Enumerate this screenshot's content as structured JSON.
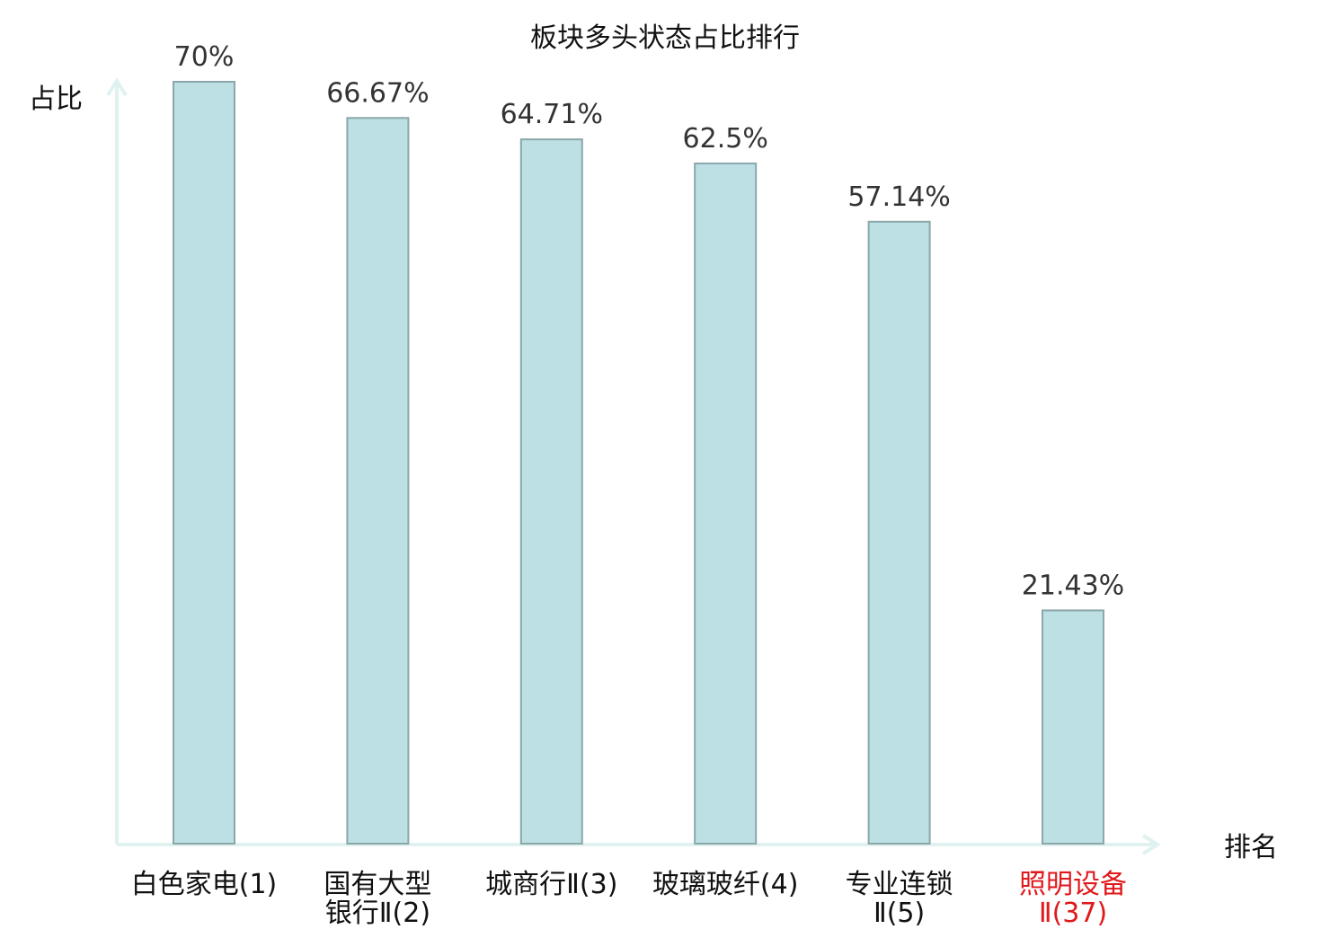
{
  "chart_data": {
    "type": "bar",
    "title": "板块多头状态占比排行",
    "ylabel": "占比",
    "xlabel": "排名",
    "ylim": [
      0,
      70
    ],
    "grid": false,
    "legend": "none",
    "categories": [
      [
        "白色家电(1)"
      ],
      [
        "国有大型",
        "银行Ⅱ(2)"
      ],
      [
        "城商行Ⅱ(3)"
      ],
      [
        "玻璃玻纤(4)"
      ],
      [
        "专业连锁",
        "Ⅱ(5)"
      ],
      [
        "照明设备",
        "Ⅱ(37)"
      ]
    ],
    "values": [
      70,
      66.67,
      64.71,
      62.5,
      57.14,
      21.43
    ],
    "value_labels": [
      "70%",
      "66.67%",
      "64.71%",
      "62.5%",
      "57.14%",
      "21.43%"
    ],
    "highlight_index": 5,
    "colors": {
      "bar_fill": "#bce0e3",
      "bar_stroke": "#8ba7aa",
      "axis": "#e0f2f0",
      "text": "#333333",
      "label_text": "#111111",
      "highlight": "#e0191b"
    }
  }
}
